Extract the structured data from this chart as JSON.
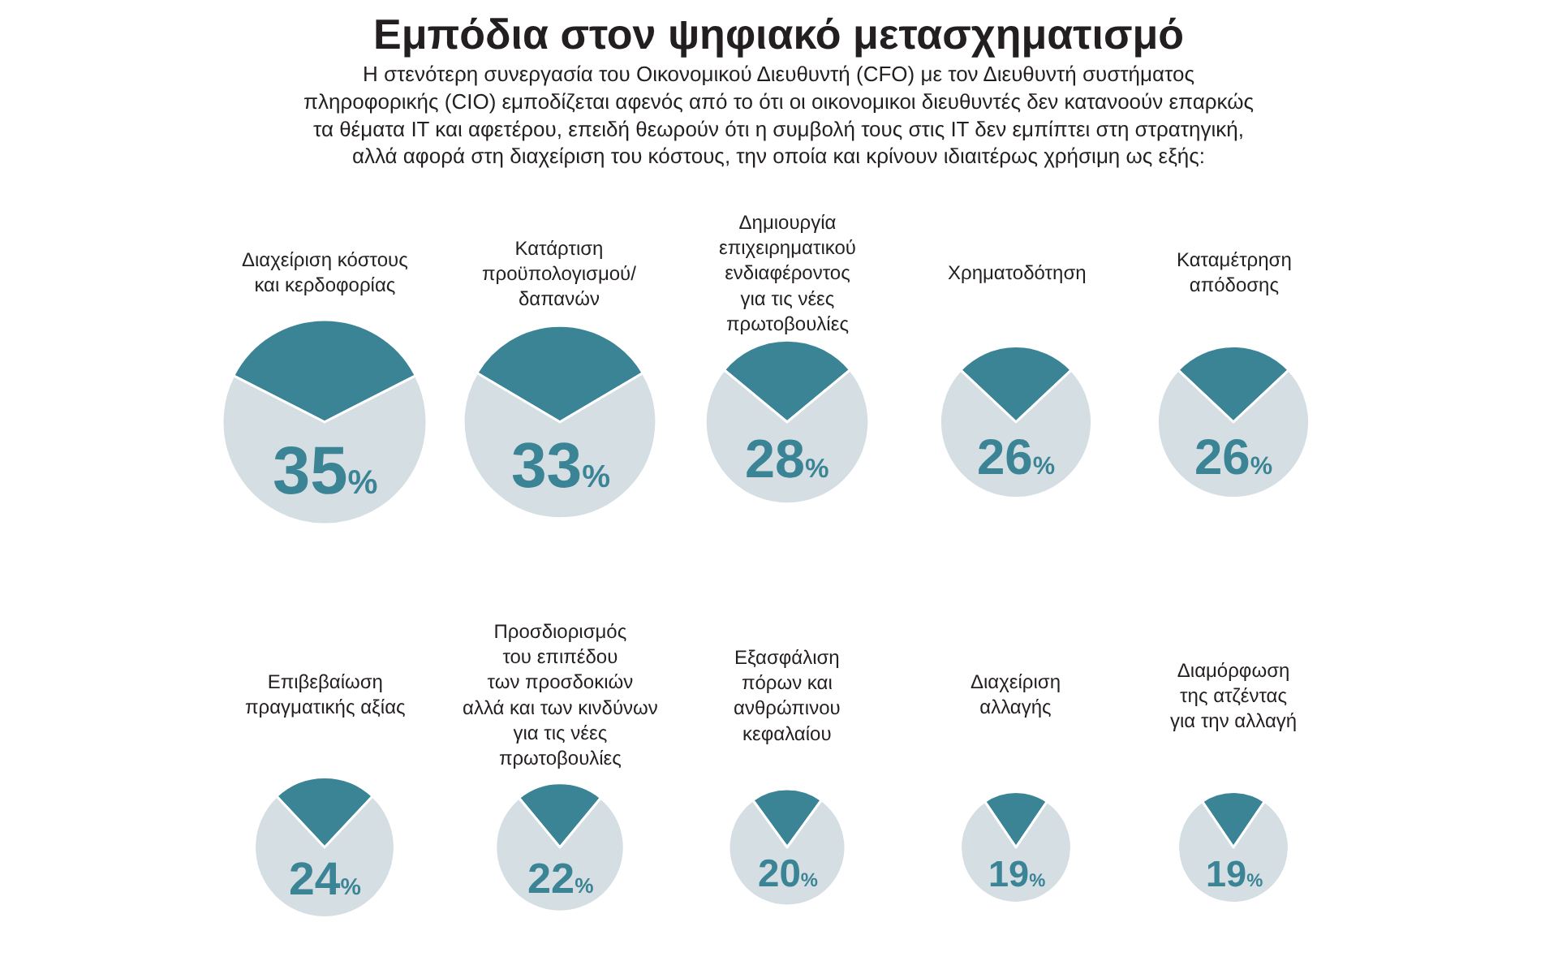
{
  "chart_data": [
    {
      "type": "other",
      "title": "Εμπόδια στον ψηφιακό μετασχηματισμό",
      "subtitle": "Η στενότερη συνεργασία του Οικονομικού Διευθυντή (CFO) με τον Διευθυντή συστήματος\nπληροφορικής (CIO) εμποδίζεται αφενός από το ότι οι οικονομικοι διευθυντές δεν κατανοούν επαρκώς\nτα θέματα IT και αφετέρου, επειδή θεωρούν ότι η συμβολή τους στις IT δεν εμπίπτει στη στρατηγική,\nαλλά αφορά στη διαχείριση του κόστους, την οποία και κρίνουν ιδιαιτέρως χρήσιμη ως εξής:"
    },
    {
      "type": "pie",
      "title": "Διαχείριση κόστους\nκαι κερδοφορίας",
      "values": [
        35,
        65
      ],
      "colors": [
        "#3b8496",
        "#d4dee3"
      ],
      "annotations": [
        "35%"
      ]
    },
    {
      "type": "pie",
      "title": "Κατάρτιση\nπροϋπολογισμού/\nδαπανών",
      "values": [
        33,
        67
      ],
      "colors": [
        "#3b8496",
        "#d4dee3"
      ],
      "annotations": [
        "33%"
      ]
    },
    {
      "type": "pie",
      "title": "Δημιουργία\nεπιχειρηματικού\nενδιαφέροντος\nγια τις νέες\nπρωτοβουλίες",
      "values": [
        28,
        72
      ],
      "colors": [
        "#3b8496",
        "#d4dee3"
      ],
      "annotations": [
        "28%"
      ]
    },
    {
      "type": "pie",
      "title": "Χρηματοδότηση",
      "values": [
        26,
        74
      ],
      "colors": [
        "#3b8496",
        "#d4dee3"
      ],
      "annotations": [
        "26%"
      ]
    },
    {
      "type": "pie",
      "title": "Καταμέτρηση\nαπόδοσης",
      "values": [
        26,
        74
      ],
      "colors": [
        "#3b8496",
        "#d4dee3"
      ],
      "annotations": [
        "26%"
      ]
    },
    {
      "type": "pie",
      "title": "Επιβεβαίωση\nπραγματικής αξίας",
      "values": [
        24,
        76
      ],
      "colors": [
        "#3b8496",
        "#d4dee3"
      ],
      "annotations": [
        "24%"
      ]
    },
    {
      "type": "pie",
      "title": "Προσδιορισμός\nτου επιπέδου\nτων προσδοκιών\nαλλά και των κινδύνων\nγια τις νέες\nπρωτοβουλίες",
      "values": [
        22,
        78
      ],
      "colors": [
        "#3b8496",
        "#d4dee3"
      ],
      "annotations": [
        "22%"
      ]
    },
    {
      "type": "pie",
      "title": "Εξασφάλιση\nπόρων και\nανθρώπινου\nκεφαλαίου",
      "values": [
        20,
        80
      ],
      "colors": [
        "#3b8496",
        "#d4dee3"
      ],
      "annotations": [
        "20%"
      ]
    },
    {
      "type": "pie",
      "title": "Διαχείριση\nαλλαγής",
      "values": [
        19,
        81
      ],
      "colors": [
        "#3b8496",
        "#d4dee3"
      ],
      "annotations": [
        "19%"
      ]
    },
    {
      "type": "pie",
      "title": "Διαμόρφωση\nτης ατζέντας\nγια την αλλαγή",
      "values": [
        19,
        81
      ],
      "colors": [
        "#3b8496",
        "#d4dee3"
      ],
      "annotations": [
        "19%"
      ]
    }
  ]
}
